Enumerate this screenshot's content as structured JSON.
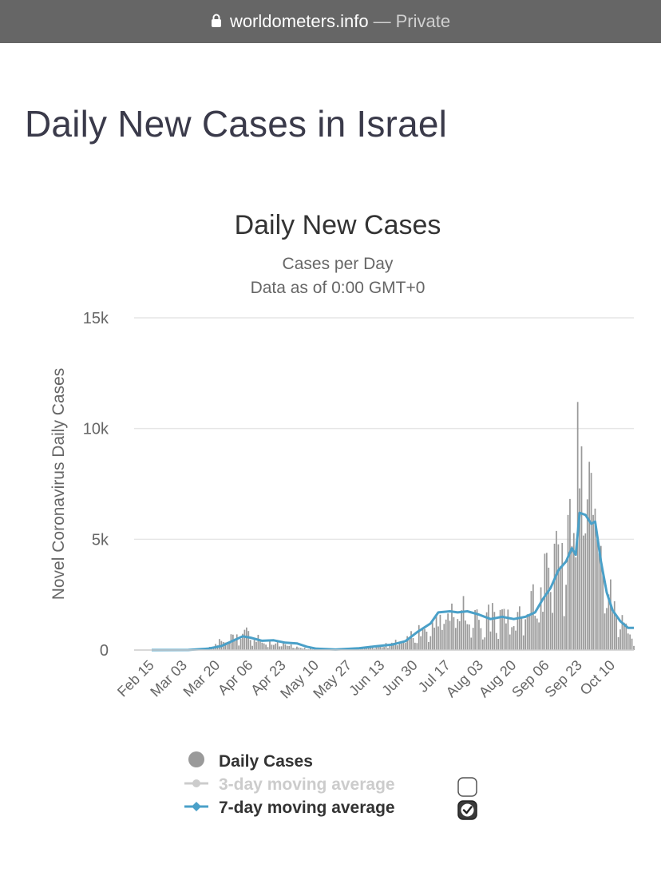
{
  "browser": {
    "domain": "worldometers.info",
    "separator": "—",
    "mode": "Private"
  },
  "page": {
    "title": "Daily New Cases in Israel"
  },
  "colors": {
    "bars": "#9a9a9a",
    "line7": "#4aa0c8",
    "line3": "#cccccc",
    "grid": "#e6e6e6",
    "text": "#333333"
  },
  "chart_data": {
    "type": "bar",
    "title": "Daily New Cases",
    "subtitle": [
      "Cases per Day",
      "Data as of 0:00 GMT+0"
    ],
    "ylabel": "Novel Coronavirus Daily Cases",
    "xlabel": "",
    "ylim": [
      0,
      15000
    ],
    "yticks": [
      0,
      5000,
      10000,
      15000
    ],
    "ytick_labels": [
      "0",
      "5k",
      "10k",
      "15k"
    ],
    "x_start": "Feb 15",
    "x_end": "Oct 21",
    "xtick_labels": [
      "Feb 15",
      "Mar 03",
      "Mar 20",
      "Apr 06",
      "Apr 23",
      "May 10",
      "May 27",
      "Jun 13",
      "Jun 30",
      "Jul 17",
      "Aug 03",
      "Aug 20",
      "Sep 06",
      "Sep 23",
      "Oct 10"
    ],
    "grid": true,
    "legend": "bottom",
    "series": [
      {
        "name": "Daily Cases",
        "kind": "bar",
        "keyframes": [
          [
            "Feb 15",
            0
          ],
          [
            "Mar 05",
            10
          ],
          [
            "Mar 15",
            80
          ],
          [
            "Mar 22",
            400
          ],
          [
            "Mar 30",
            550
          ],
          [
            "Apr 03",
            750
          ],
          [
            "Apr 10",
            520
          ],
          [
            "Apr 20",
            300
          ],
          [
            "Apr 28",
            200
          ],
          [
            "May 05",
            60
          ],
          [
            "May 20",
            30
          ],
          [
            "Jun 02",
            100
          ],
          [
            "Jun 15",
            250
          ],
          [
            "Jun 23",
            400
          ],
          [
            "Jun 30",
            700
          ],
          [
            "Jul 08",
            1200
          ],
          [
            "Jul 15",
            1700
          ],
          [
            "Jul 23",
            1800
          ],
          [
            "Jul 30",
            1500
          ],
          [
            "Aug 05",
            1500
          ],
          [
            "Aug 12",
            1500
          ],
          [
            "Aug 20",
            1300
          ],
          [
            "Aug 27",
            1900
          ],
          [
            "Sep 01",
            2700
          ],
          [
            "Sep 07",
            3300
          ],
          [
            "Sep 14",
            4300
          ],
          [
            "Sep 20",
            5500
          ],
          [
            "Sep 26",
            7000
          ],
          [
            "Oct 01",
            5500
          ],
          [
            "Oct 05",
            4000
          ],
          [
            "Oct 10",
            2000
          ],
          [
            "Oct 15",
            1400
          ],
          [
            "Oct 21",
            500
          ]
        ],
        "spikes": [
          [
            "Sep 22",
            11200
          ],
          [
            "Sep 24",
            9200
          ],
          [
            "Sep 23",
            7300
          ],
          [
            "Sep 28",
            8500
          ],
          [
            "Sep 29",
            8000
          ],
          [
            "Sep 17",
            6100
          ],
          [
            "Sep 19",
            4700
          ],
          [
            "Sep 30",
            6100
          ],
          [
            "Oct 02",
            5000
          ],
          [
            "Oct 04",
            4700
          ]
        ]
      },
      {
        "name": "3-day moving average",
        "kind": "line",
        "visible": false
      },
      {
        "name": "7-day moving average",
        "kind": "line",
        "visible": true,
        "points": [
          [
            "Feb 15",
            0
          ],
          [
            "Mar 05",
            5
          ],
          [
            "Mar 15",
            60
          ],
          [
            "Mar 22",
            180
          ],
          [
            "Mar 28",
            420
          ],
          [
            "Apr 02",
            620
          ],
          [
            "Apr 06",
            560
          ],
          [
            "Apr 12",
            420
          ],
          [
            "Apr 18",
            440
          ],
          [
            "Apr 24",
            330
          ],
          [
            "Apr 30",
            300
          ],
          [
            "May 05",
            150
          ],
          [
            "May 10",
            60
          ],
          [
            "May 20",
            20
          ],
          [
            "Jun 01",
            80
          ],
          [
            "Jun 10",
            170
          ],
          [
            "Jun 18",
            240
          ],
          [
            "Jun 25",
            400
          ],
          [
            "Jul 01",
            800
          ],
          [
            "Jul 08",
            1200
          ],
          [
            "Jul 12",
            1700
          ],
          [
            "Jul 18",
            1750
          ],
          [
            "Jul 22",
            1700
          ],
          [
            "Jul 27",
            1750
          ],
          [
            "Aug 02",
            1600
          ],
          [
            "Aug 08",
            1400
          ],
          [
            "Aug 14",
            1500
          ],
          [
            "Aug 20",
            1400
          ],
          [
            "Aug 26",
            1500
          ],
          [
            "Aug 31",
            1700
          ],
          [
            "Sep 04",
            2300
          ],
          [
            "Sep 08",
            2800
          ],
          [
            "Sep 12",
            3600
          ],
          [
            "Sep 16",
            4000
          ],
          [
            "Sep 19",
            4600
          ],
          [
            "Sep 21",
            4300
          ],
          [
            "Sep 23",
            6200
          ],
          [
            "Sep 26",
            6100
          ],
          [
            "Sep 29",
            5700
          ],
          [
            "Oct 01",
            5800
          ],
          [
            "Oct 04",
            4000
          ],
          [
            "Oct 07",
            2600
          ],
          [
            "Oct 10",
            1800
          ],
          [
            "Oct 14",
            1300
          ],
          [
            "Oct 18",
            1000
          ],
          [
            "Oct 21",
            1000
          ]
        ]
      }
    ]
  },
  "legend": {
    "items": [
      {
        "label": "Daily Cases",
        "active": true
      },
      {
        "label": "3-day moving average",
        "active": false,
        "checked": false
      },
      {
        "label": "7-day moving average",
        "active": true,
        "checked": true
      }
    ]
  }
}
